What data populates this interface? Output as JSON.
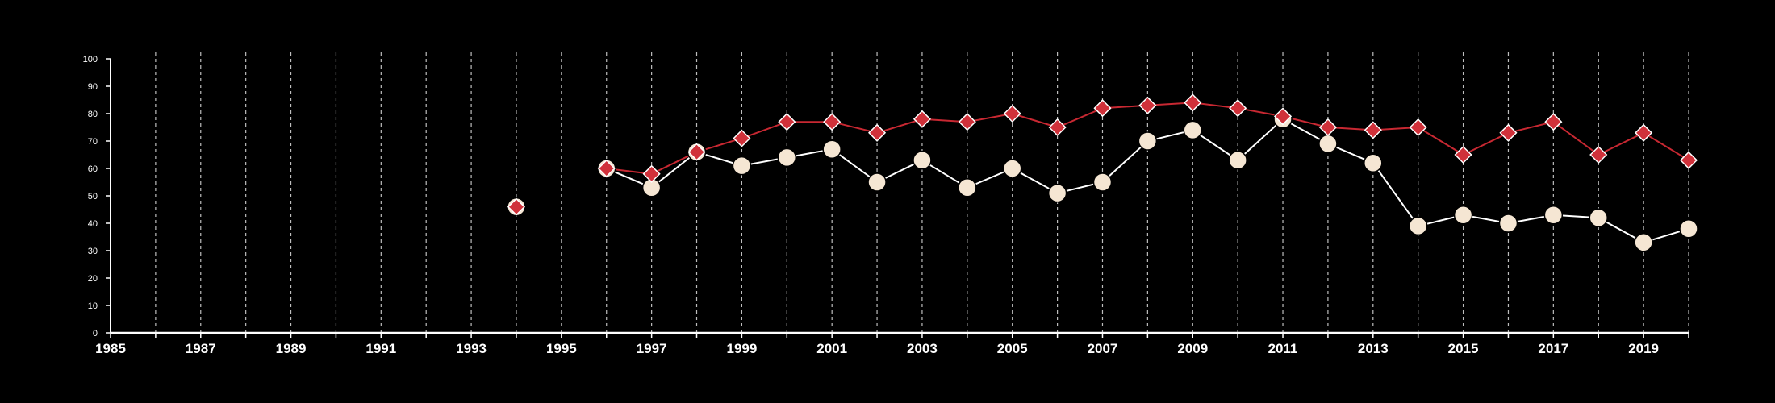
{
  "chart_data": {
    "type": "line",
    "title": "",
    "xlabel": "",
    "ylabel": "",
    "xlim": [
      1985,
      2020
    ],
    "ylim": [
      0,
      100
    ],
    "y_ticks": [
      0,
      10,
      20,
      30,
      40,
      50,
      60,
      70,
      80,
      90,
      100
    ],
    "x_tick_labels": [
      1985,
      1987,
      1989,
      1991,
      1993,
      1995,
      1997,
      1999,
      2001,
      2003,
      2005,
      2007,
      2009,
      2011,
      2013,
      2015,
      2017,
      2019
    ],
    "grid": "vertical dashed lines at every year",
    "legend": "none",
    "series": [
      {
        "marker": "diamond",
        "color": "#d0313a",
        "points": [
          [
            1994,
            46
          ],
          [
            1996,
            60
          ],
          [
            1997,
            58
          ],
          [
            1998,
            66
          ],
          [
            1999,
            71
          ],
          [
            2000,
            77
          ],
          [
            2001,
            77
          ],
          [
            2002,
            73
          ],
          [
            2003,
            78
          ],
          [
            2004,
            77
          ],
          [
            2005,
            80
          ],
          [
            2006,
            75
          ],
          [
            2007,
            82
          ],
          [
            2008,
            83
          ],
          [
            2009,
            84
          ],
          [
            2010,
            82
          ],
          [
            2011,
            79
          ],
          [
            2012,
            75
          ],
          [
            2013,
            74
          ],
          [
            2014,
            75
          ],
          [
            2015,
            65
          ],
          [
            2016,
            73
          ],
          [
            2017,
            77
          ],
          [
            2018,
            65
          ],
          [
            2019,
            73
          ],
          [
            2020,
            63
          ]
        ]
      },
      {
        "marker": "circle",
        "color": "#f5e6d3",
        "points": [
          [
            1994,
            46
          ],
          [
            1996,
            60
          ],
          [
            1997,
            53
          ],
          [
            1998,
            66
          ],
          [
            1999,
            61
          ],
          [
            2000,
            64
          ],
          [
            2001,
            67
          ],
          [
            2002,
            55
          ],
          [
            2003,
            63
          ],
          [
            2004,
            53
          ],
          [
            2005,
            60
          ],
          [
            2006,
            51
          ],
          [
            2007,
            55
          ],
          [
            2008,
            70
          ],
          [
            2009,
            74
          ],
          [
            2010,
            63
          ],
          [
            2011,
            78
          ],
          [
            2012,
            69
          ],
          [
            2013,
            62
          ],
          [
            2014,
            39
          ],
          [
            2015,
            43
          ],
          [
            2016,
            40
          ],
          [
            2017,
            43
          ],
          [
            2018,
            42
          ],
          [
            2019,
            33
          ],
          [
            2020,
            38
          ]
        ]
      }
    ]
  }
}
